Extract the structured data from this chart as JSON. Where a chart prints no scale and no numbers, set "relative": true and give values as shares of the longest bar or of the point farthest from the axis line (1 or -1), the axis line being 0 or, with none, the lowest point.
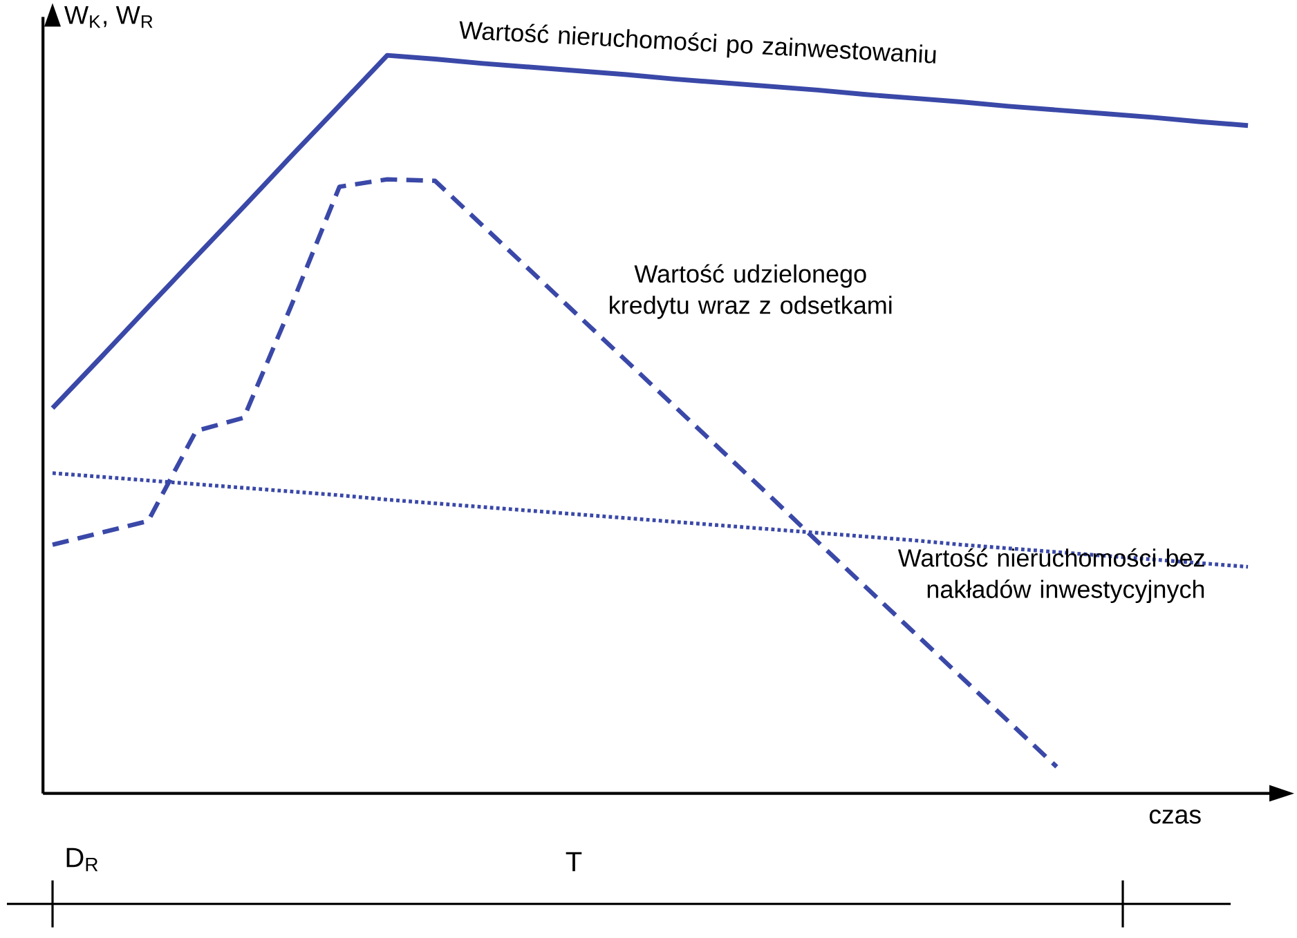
{
  "chart_data": {
    "type": "line",
    "relative": true,
    "ylabel": "W$_{K}$, W$_{R}$",
    "xlabel": "czas",
    "marker": "none",
    "categories": [
      null,
      null,
      null,
      null,
      null,
      null,
      null,
      null,
      null,
      null,
      null,
      null,
      null,
      null,
      null,
      null,
      null,
      null,
      null,
      null,
      null,
      null,
      null,
      null,
      null,
      null
    ],
    "series": [
      {
        "name": "Wartość nieruchomości po zainwestowaniu",
        "color": "#3a48a8",
        "line_style": "solid",
        "values": [
          0.522,
          0.59,
          0.659,
          0.727,
          0.795,
          0.864,
          0.932,
          1.0,
          0.995,
          0.989,
          0.984,
          0.979,
          0.974,
          0.968,
          0.963,
          0.958,
          0.953,
          0.947,
          0.942,
          0.937,
          0.931,
          0.926,
          0.921,
          0.916,
          0.91,
          0.905
        ]
      },
      {
        "name": "Wartość udzielonego kredytu wraz z odsetkami",
        "color": "#3a48a8",
        "line_style": "dashed",
        "values": [
          0.337,
          0.353,
          0.369,
          0.491,
          0.509,
          0.662,
          0.822,
          0.832,
          0.83,
          0.769,
          0.708,
          0.647,
          0.586,
          0.525,
          0.464,
          0.403,
          0.341,
          0.28,
          0.219,
          0.158,
          0.097,
          0.036,
          null,
          null,
          null,
          null
        ]
      },
      {
        "name": "Wartość nieruchomości bez nakładów inwestycyjnych",
        "color": "#3a48a8",
        "line_style": "dotted",
        "values": [
          0.434,
          0.429,
          0.424,
          0.419,
          0.414,
          0.409,
          0.404,
          0.398,
          0.393,
          0.388,
          0.383,
          0.378,
          0.373,
          0.368,
          0.363,
          0.358,
          0.353,
          0.348,
          0.343,
          0.337,
          0.332,
          0.327,
          0.322,
          0.317,
          0.312,
          0.307
        ]
      }
    ],
    "annotations": [
      "D$_{R}$",
      "T"
    ]
  }
}
